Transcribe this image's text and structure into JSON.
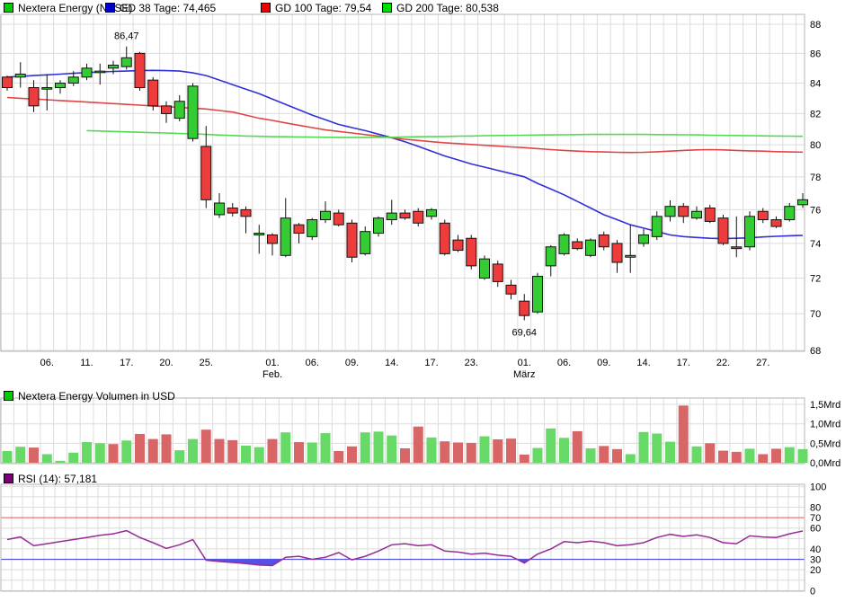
{
  "page": {
    "background": "#ffffff"
  },
  "legend_price": {
    "items": [
      {
        "label": "Nextera Energy (NYSE)",
        "color": "#00cc00"
      },
      {
        "label": "GD 38 Tage: 74,465",
        "color": "#0000cc"
      },
      {
        "label": "GD 100 Tage: 79,54",
        "color": "#ee0000"
      },
      {
        "label": "GD 200 Tage: 80,538",
        "color": "#00dd00"
      }
    ]
  },
  "legend_volume": {
    "label": "Nextera Energy Volumen in USD",
    "color": "#00cc00"
  },
  "legend_rsi": {
    "label": "RSI (14): 57,181",
    "color": "#7a007a"
  },
  "chart_data": [
    {
      "type": "candlestick",
      "title": "Nextera Energy (NYSE)",
      "yscale": "log",
      "ylim": [
        68,
        88
      ],
      "y_ticks": [
        88,
        86,
        84,
        82,
        80,
        78,
        76,
        74,
        72,
        70,
        68
      ],
      "x_ticks": [
        {
          "i": 3,
          "label": "06."
        },
        {
          "i": 6,
          "label": "11."
        },
        {
          "i": 9,
          "label": "17."
        },
        {
          "i": 12,
          "label": "20."
        },
        {
          "i": 15,
          "label": "25."
        },
        {
          "i": 20,
          "label": "01.",
          "sub": "Feb."
        },
        {
          "i": 23,
          "label": "06."
        },
        {
          "i": 26,
          "label": "09."
        },
        {
          "i": 29,
          "label": "14."
        },
        {
          "i": 32,
          "label": "17."
        },
        {
          "i": 35,
          "label": "23."
        },
        {
          "i": 39,
          "label": "01.",
          "sub": "März"
        },
        {
          "i": 42,
          "label": "06."
        },
        {
          "i": 45,
          "label": "09."
        },
        {
          "i": 48,
          "label": "14."
        },
        {
          "i": 51,
          "label": "17."
        },
        {
          "i": 54,
          "label": "22."
        },
        {
          "i": 57,
          "label": "27."
        }
      ],
      "annotations": [
        {
          "i": 9,
          "value": 86.47,
          "label": "86,47",
          "position": "above"
        },
        {
          "i": 39,
          "value": 69.64,
          "label": "69,64",
          "position": "below"
        }
      ],
      "colors": {
        "up": "#33cc33",
        "down": "#ee3c3c",
        "border": "#111111"
      },
      "candles": [
        [
          84.4,
          84.5,
          83.5,
          83.7
        ],
        [
          84.4,
          85.4,
          83.7,
          84.6
        ],
        [
          83.7,
          84.2,
          82.1,
          82.5
        ],
        [
          83.6,
          84.6,
          82.2,
          83.7
        ],
        [
          83.7,
          84.2,
          83.3,
          84.0
        ],
        [
          84.0,
          84.8,
          83.8,
          84.4
        ],
        [
          84.4,
          85.3,
          84.2,
          85.0
        ],
        [
          84.7,
          85.3,
          83.9,
          84.8
        ],
        [
          85.0,
          85.5,
          84.6,
          85.2
        ],
        [
          85.1,
          86.47,
          84.9,
          85.7
        ],
        [
          86.0,
          86.1,
          83.5,
          83.7
        ],
        [
          84.2,
          84.4,
          82.2,
          82.5
        ],
        [
          82.5,
          82.8,
          81.4,
          82.0
        ],
        [
          81.7,
          83.2,
          81.5,
          82.8
        ],
        [
          80.4,
          84.0,
          80.2,
          83.8
        ],
        [
          79.9,
          81.2,
          76.1,
          76.6
        ],
        [
          75.7,
          77.0,
          75.5,
          76.4
        ],
        [
          76.1,
          76.4,
          75.6,
          75.8
        ],
        [
          76.0,
          76.2,
          74.6,
          75.6
        ],
        [
          74.5,
          75.1,
          73.4,
          74.6
        ],
        [
          74.5,
          74.6,
          73.3,
          74.0
        ],
        [
          73.3,
          76.7,
          73.2,
          75.5
        ],
        [
          75.1,
          75.2,
          74.0,
          74.6
        ],
        [
          74.4,
          75.5,
          74.2,
          75.4
        ],
        [
          75.4,
          76.5,
          75.2,
          75.9
        ],
        [
          75.8,
          76.0,
          75.0,
          75.1
        ],
        [
          75.2,
          75.4,
          72.9,
          73.2
        ],
        [
          73.4,
          75.0,
          73.3,
          74.7
        ],
        [
          74.6,
          75.6,
          74.4,
          75.5
        ],
        [
          75.4,
          76.6,
          75.1,
          75.8
        ],
        [
          75.8,
          76.0,
          75.4,
          75.5
        ],
        [
          75.9,
          76.1,
          75.0,
          75.2
        ],
        [
          75.6,
          76.1,
          75.4,
          76.0
        ],
        [
          75.2,
          75.4,
          73.3,
          73.4
        ],
        [
          74.2,
          74.5,
          73.5,
          73.6
        ],
        [
          74.3,
          74.5,
          72.5,
          72.7
        ],
        [
          72.0,
          73.3,
          71.9,
          73.1
        ],
        [
          72.8,
          73.0,
          71.5,
          71.8
        ],
        [
          71.6,
          71.9,
          70.8,
          71.1
        ],
        [
          70.7,
          71.1,
          69.64,
          69.9
        ],
        [
          70.1,
          72.3,
          70.0,
          72.1
        ],
        [
          72.7,
          73.9,
          72.1,
          73.8
        ],
        [
          73.4,
          74.6,
          73.3,
          74.5
        ],
        [
          74.1,
          74.3,
          73.6,
          73.7
        ],
        [
          73.3,
          74.3,
          73.2,
          74.2
        ],
        [
          74.5,
          74.7,
          73.6,
          73.8
        ],
        [
          74.0,
          74.2,
          72.3,
          72.9
        ],
        [
          73.2,
          75.1,
          72.3,
          73.3
        ],
        [
          74.0,
          74.85,
          73.8,
          74.5
        ],
        [
          74.4,
          75.9,
          74.2,
          75.6
        ],
        [
          75.6,
          76.56,
          75.3,
          76.2
        ],
        [
          76.2,
          76.4,
          75.2,
          75.6
        ],
        [
          75.5,
          76.2,
          75.4,
          75.9
        ],
        [
          76.1,
          76.3,
          75.2,
          75.3
        ],
        [
          75.5,
          75.7,
          73.9,
          74.0
        ],
        [
          73.8,
          75.6,
          73.2,
          73.7
        ],
        [
          73.8,
          75.9,
          73.6,
          75.6
        ],
        [
          75.9,
          76.1,
          75.2,
          75.4
        ],
        [
          75.4,
          75.6,
          74.9,
          75.0
        ],
        [
          75.4,
          76.4,
          75.3,
          76.2
        ],
        [
          76.3,
          77.0,
          76.1,
          76.6
        ]
      ],
      "overlays": [
        {
          "name": "GD 38 Tage",
          "last_value": 74.465,
          "color": "#3030d8",
          "values": [
            84.4,
            84.45,
            84.5,
            84.55,
            84.6,
            84.65,
            84.7,
            84.74,
            84.78,
            84.8,
            84.83,
            84.85,
            84.83,
            84.8,
            84.68,
            84.5,
            84.2,
            83.9,
            83.6,
            83.3,
            82.95,
            82.6,
            82.25,
            81.9,
            81.6,
            81.3,
            81.1,
            80.9,
            80.68,
            80.45,
            80.2,
            79.9,
            79.6,
            79.3,
            79.05,
            78.8,
            78.6,
            78.4,
            78.2,
            78.0,
            77.6,
            77.25,
            76.9,
            76.5,
            76.1,
            75.7,
            75.4,
            75.1,
            74.9,
            74.7,
            74.5,
            74.4,
            74.35,
            74.3,
            74.28,
            74.3,
            74.33,
            74.38,
            74.42,
            74.45,
            74.47
          ]
        },
        {
          "name": "GD 100 Tage",
          "last_value": 79.54,
          "color": "#e04545",
          "values": [
            83.05,
            83.0,
            82.95,
            82.9,
            82.85,
            82.8,
            82.75,
            82.7,
            82.65,
            82.6,
            82.55,
            82.5,
            82.45,
            82.4,
            82.35,
            82.3,
            82.2,
            82.1,
            81.9,
            81.7,
            81.56,
            81.4,
            81.25,
            81.1,
            80.95,
            80.85,
            80.75,
            80.65,
            80.55,
            80.45,
            80.35,
            80.28,
            80.2,
            80.13,
            80.08,
            80.02,
            79.97,
            79.92,
            79.87,
            79.82,
            79.76,
            79.7,
            79.65,
            79.6,
            79.57,
            79.55,
            79.53,
            79.52,
            79.53,
            79.56,
            79.6,
            79.65,
            79.68,
            79.7,
            79.68,
            79.65,
            79.62,
            79.6,
            79.57,
            79.55,
            79.54
          ]
        },
        {
          "name": "GD 200 Tage",
          "last_value": 80.538,
          "color": "#52da52",
          "values": [
            null,
            null,
            null,
            null,
            null,
            null,
            80.9,
            80.88,
            80.85,
            80.82,
            80.8,
            80.77,
            80.75,
            80.72,
            80.7,
            80.66,
            80.62,
            80.59,
            80.56,
            80.54,
            80.52,
            80.51,
            80.5,
            80.49,
            80.48,
            80.47,
            80.47,
            80.47,
            80.47,
            80.48,
            80.5,
            80.51,
            80.52,
            80.53,
            80.55,
            80.56,
            80.58,
            80.59,
            80.6,
            80.61,
            80.62,
            80.63,
            80.64,
            80.65,
            80.66,
            80.66,
            80.66,
            80.66,
            80.66,
            80.65,
            80.65,
            80.64,
            80.63,
            80.61,
            80.6,
            80.59,
            80.58,
            80.57,
            80.56,
            80.55,
            80.538
          ]
        }
      ]
    },
    {
      "type": "bar",
      "name": "Nextera Energy Volumen in USD",
      "unit": "Mrd USD",
      "ylim": [
        0,
        1.65
      ],
      "y_ticks": [
        {
          "v": 0.0,
          "label": "0,0Mrd"
        },
        {
          "v": 0.5,
          "label": "0,5Mrd"
        },
        {
          "v": 1.0,
          "label": "1,0Mrd"
        },
        {
          "v": 1.5,
          "label": "1,5Mrd"
        }
      ],
      "colors": {
        "up": "#66d966",
        "down": "#d96666"
      },
      "values": [
        0.3,
        0.41,
        0.39,
        0.22,
        0.05,
        0.26,
        0.53,
        0.5,
        0.48,
        0.57,
        0.74,
        0.61,
        0.73,
        0.32,
        0.61,
        0.85,
        0.61,
        0.58,
        0.44,
        0.4,
        0.61,
        0.78,
        0.53,
        0.52,
        0.76,
        0.3,
        0.42,
        0.78,
        0.8,
        0.7,
        0.37,
        0.93,
        0.65,
        0.55,
        0.52,
        0.51,
        0.68,
        0.6,
        0.62,
        0.21,
        0.38,
        0.88,
        0.64,
        0.81,
        0.37,
        0.43,
        0.35,
        0.22,
        0.79,
        0.75,
        0.54,
        1.47,
        0.42,
        0.5,
        0.31,
        0.28,
        0.36,
        0.22,
        0.36,
        0.4,
        0.35
      ],
      "directions": [
        "g",
        "g",
        "r",
        "g",
        "g",
        "g",
        "g",
        "g",
        "r",
        "g",
        "r",
        "r",
        "r",
        "g",
        "g",
        "r",
        "r",
        "r",
        "g",
        "g",
        "r",
        "g",
        "r",
        "g",
        "g",
        "r",
        "r",
        "g",
        "g",
        "g",
        "r",
        "r",
        "g",
        "r",
        "r",
        "r",
        "g",
        "r",
        "r",
        "r",
        "g",
        "g",
        "g",
        "r",
        "g",
        "r",
        "r",
        "g",
        "g",
        "g",
        "g",
        "r",
        "g",
        "r",
        "r",
        "r",
        "g",
        "r",
        "r",
        "g",
        "g"
      ]
    },
    {
      "type": "line",
      "name": "RSI (14)",
      "last_value": 57.181,
      "ylim": [
        0,
        100
      ],
      "color": "#952d95",
      "below_lower_fill": "#5151e8",
      "grid_step": 10,
      "thresholds": [
        {
          "value": 70,
          "color": "#ee7777",
          "label_color": "#e87474"
        },
        {
          "value": 30,
          "color": "#5555dd",
          "label_color": "#7d7de8"
        }
      ],
      "y_ticks": [
        {
          "v": 100,
          "label": "100"
        },
        {
          "v": 80,
          "label": "80"
        },
        {
          "v": 70,
          "label": "70",
          "color": "#e87474"
        },
        {
          "v": 60,
          "label": "60"
        },
        {
          "v": 40,
          "label": "40"
        },
        {
          "v": 30,
          "label": "30",
          "color": "#7d7de8"
        },
        {
          "v": 20,
          "label": "20"
        },
        {
          "v": 0,
          "label": "0"
        }
      ],
      "values": [
        49,
        51.5,
        43,
        45,
        47,
        49,
        51,
        53,
        54.5,
        57.5,
        51,
        46,
        40.5,
        44,
        49,
        29.2,
        28,
        27,
        26,
        24.5,
        24,
        32,
        33,
        30,
        32,
        36.5,
        29.5,
        33,
        38,
        44,
        45,
        43,
        44,
        38,
        37,
        35,
        36,
        34,
        33,
        26.5,
        35,
        40,
        47,
        46,
        47.5,
        46,
        43,
        44,
        46,
        51,
        54,
        52,
        53.5,
        51,
        46,
        45,
        52.5,
        51.5,
        51,
        54.5,
        57.18
      ]
    }
  ]
}
